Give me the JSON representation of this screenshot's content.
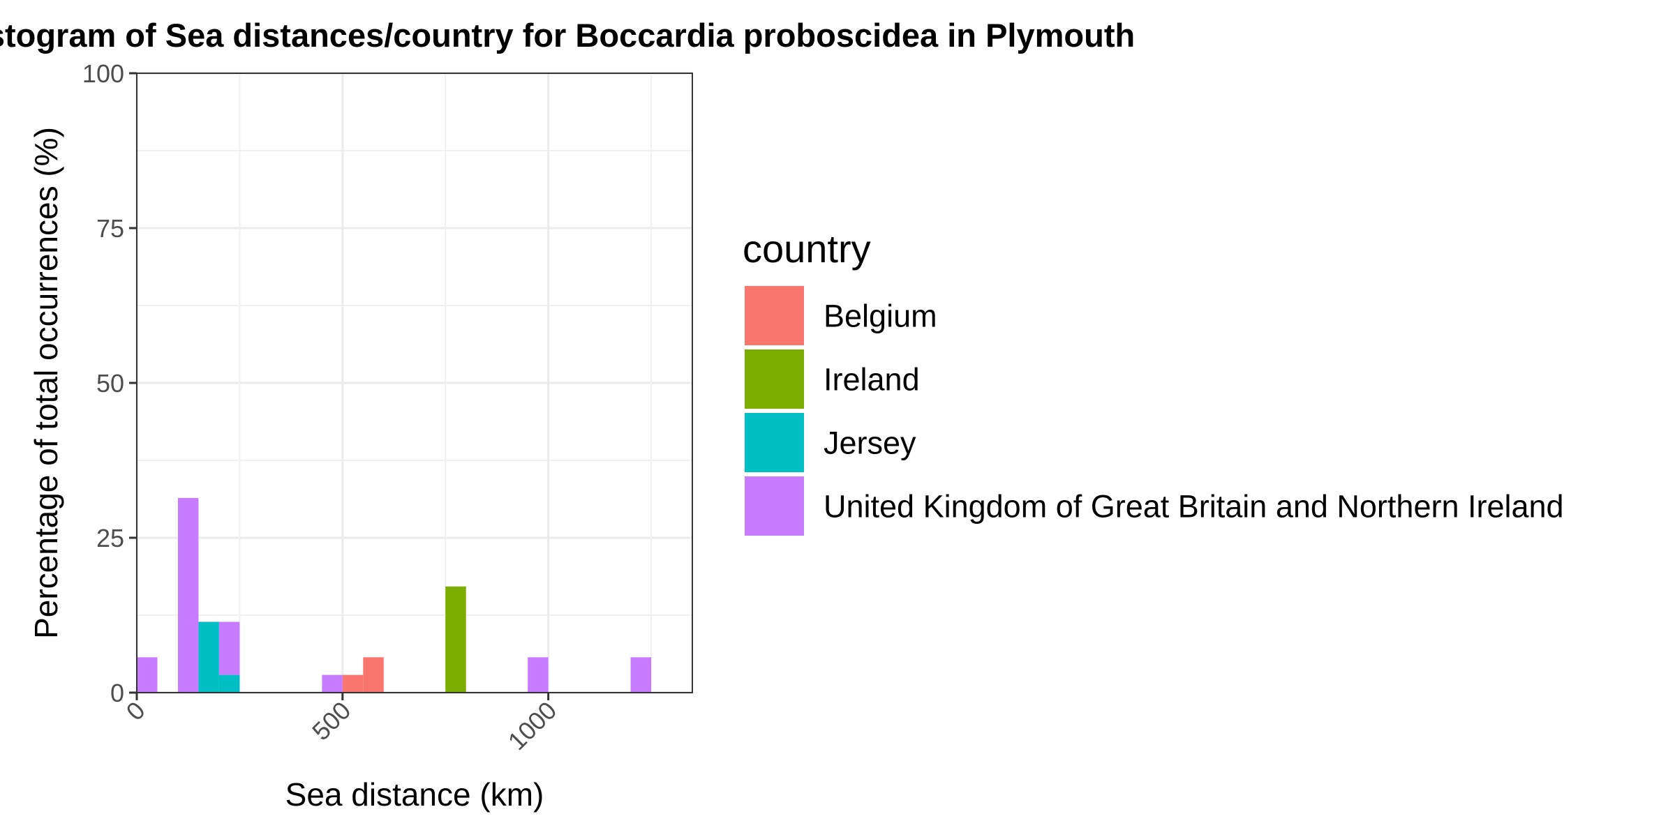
{
  "chart_data": {
    "type": "bar",
    "stacked": true,
    "title": "Histogram of Sea distances/country for Boccardia proboscidea in Plymouth",
    "xlabel": "Sea distance (km)",
    "ylabel": "Percentage of total occurrences (%)",
    "xlim": [
      0,
      1350
    ],
    "ylim": [
      0,
      100
    ],
    "x_ticks": [
      0,
      500,
      1000
    ],
    "x_tick_labels": [
      "0",
      "500",
      "1000"
    ],
    "y_ticks": [
      0,
      25,
      50,
      75,
      100
    ],
    "y_tick_labels": [
      "0",
      "25",
      "50",
      "75",
      "100"
    ],
    "grid": true,
    "bin_width": 50,
    "legend": {
      "title": "country",
      "position": "right",
      "entries": [
        {
          "label": "Belgium",
          "color": "#F8766D"
        },
        {
          "label": "Ireland",
          "color": "#7CAE00"
        },
        {
          "label": "Jersey",
          "color": "#00BFC4"
        },
        {
          "label": "United Kingdom of Great Britain and Northern Ireland",
          "color": "#C77CFF"
        }
      ]
    },
    "series": [
      {
        "name": "Belgium",
        "color": "#F8766D",
        "bars": [
          {
            "x0": 500,
            "x1": 550,
            "value": 2.86
          },
          {
            "x0": 550,
            "x1": 600,
            "value": 5.71
          }
        ]
      },
      {
        "name": "Ireland",
        "color": "#7CAE00",
        "bars": [
          {
            "x0": 750,
            "x1": 800,
            "value": 17.14
          }
        ]
      },
      {
        "name": "Jersey",
        "color": "#00BFC4",
        "bars": [
          {
            "x0": 150,
            "x1": 200,
            "value": 11.43
          },
          {
            "x0": 200,
            "x1": 250,
            "value": 2.86
          }
        ]
      },
      {
        "name": "United Kingdom of Great Britain and Northern Ireland",
        "color": "#C77CFF",
        "bars": [
          {
            "x0": 0,
            "x1": 50,
            "value": 5.71
          },
          {
            "x0": 100,
            "x1": 150,
            "value": 31.43
          },
          {
            "x0": 200,
            "x1": 250,
            "value": 8.57
          },
          {
            "x0": 450,
            "x1": 500,
            "value": 2.86
          },
          {
            "x0": 950,
            "x1": 1000,
            "value": 5.71
          },
          {
            "x0": 1200,
            "x1": 1250,
            "value": 5.71
          }
        ]
      }
    ]
  }
}
